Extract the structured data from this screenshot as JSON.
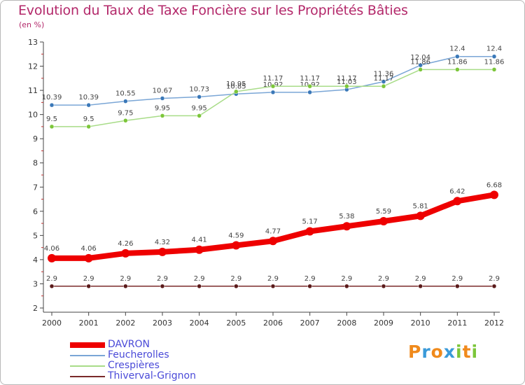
{
  "chart_data": {
    "type": "line",
    "title": "Evolution du Taux de Taxe Foncière sur les Propriétés Bâties",
    "ylabel": "(en %)",
    "xlabel": "",
    "x": [
      "2000",
      "2001",
      "2002",
      "2003",
      "2004",
      "2005",
      "2006",
      "2007",
      "2008",
      "2009",
      "2010",
      "2011",
      "2012"
    ],
    "ylim": [
      2,
      13
    ],
    "yticks": [
      "2",
      "3",
      "4",
      "5",
      "6",
      "7",
      "8",
      "9",
      "10",
      "11",
      "12",
      "13"
    ],
    "grid": false,
    "legend_position": "bottom-left",
    "series": [
      {
        "name": "Feucherolles",
        "color": "#7aa6d6",
        "marker": "#3a78b8",
        "values": [
          10.39,
          10.39,
          10.55,
          10.67,
          10.73,
          10.85,
          10.92,
          10.92,
          11.03,
          11.36,
          12.04,
          12.4,
          12.4
        ],
        "labels": [
          "10.39",
          "10.39",
          "10.55",
          "10.67",
          "10.73",
          "10.85",
          "10.92",
          "10.92",
          "11.03",
          "11.36",
          "12.04",
          "12.4",
          "12.4"
        ]
      },
      {
        "name": "Crespières",
        "color": "#a8dc88",
        "marker": "#7cc63a",
        "values": [
          9.5,
          9.5,
          9.75,
          9.95,
          9.95,
          10.95,
          11.17,
          11.17,
          11.17,
          11.17,
          11.86,
          11.86,
          11.86
        ],
        "labels": [
          "9.5",
          "9.5",
          "9.75",
          "9.95",
          "9.95",
          "10.95",
          "11.17",
          "11.17",
          "11.17",
          "11.17",
          "11.86",
          "11.86",
          "11.86"
        ]
      },
      {
        "name": "DAVRON",
        "color": "#ee0000",
        "marker": "#ee0000",
        "values": [
          4.06,
          4.06,
          4.26,
          4.32,
          4.41,
          4.59,
          4.77,
          5.17,
          5.38,
          5.59,
          5.81,
          6.42,
          6.68
        ],
        "labels": [
          "4.06",
          "4.06",
          "4.26",
          "4.32",
          "4.41",
          "4.59",
          "4.77",
          "5.17",
          "5.38",
          "5.59",
          "5.81",
          "6.42",
          "6.68"
        ]
      },
      {
        "name": "Thiverval-Grignon",
        "color": "#7a2a2a",
        "marker": "#5a1a1a",
        "values": [
          2.9,
          2.9,
          2.9,
          2.9,
          2.9,
          2.9,
          2.9,
          2.9,
          2.9,
          2.9,
          2.9,
          2.9,
          2.9
        ],
        "labels": [
          "2.9",
          "2.9",
          "2.9",
          "2.9",
          "2.9",
          "2.9",
          "2.9",
          "2.9",
          "2.9",
          "2.9",
          "2.9",
          "2.9",
          "2.9"
        ]
      }
    ],
    "legend": [
      "DAVRON",
      "Feucherolles",
      "Crespières",
      "Thiverval-Grignon"
    ]
  },
  "logo": {
    "letters": [
      "P",
      "r",
      "o",
      "x",
      "i",
      "t",
      "i"
    ],
    "colors": [
      "#f08a1c",
      "#3a9ad9",
      "#f08a1c",
      "#3a9ad9",
      "#7cc63a",
      "#f08a1c",
      "#7cc63a"
    ]
  }
}
